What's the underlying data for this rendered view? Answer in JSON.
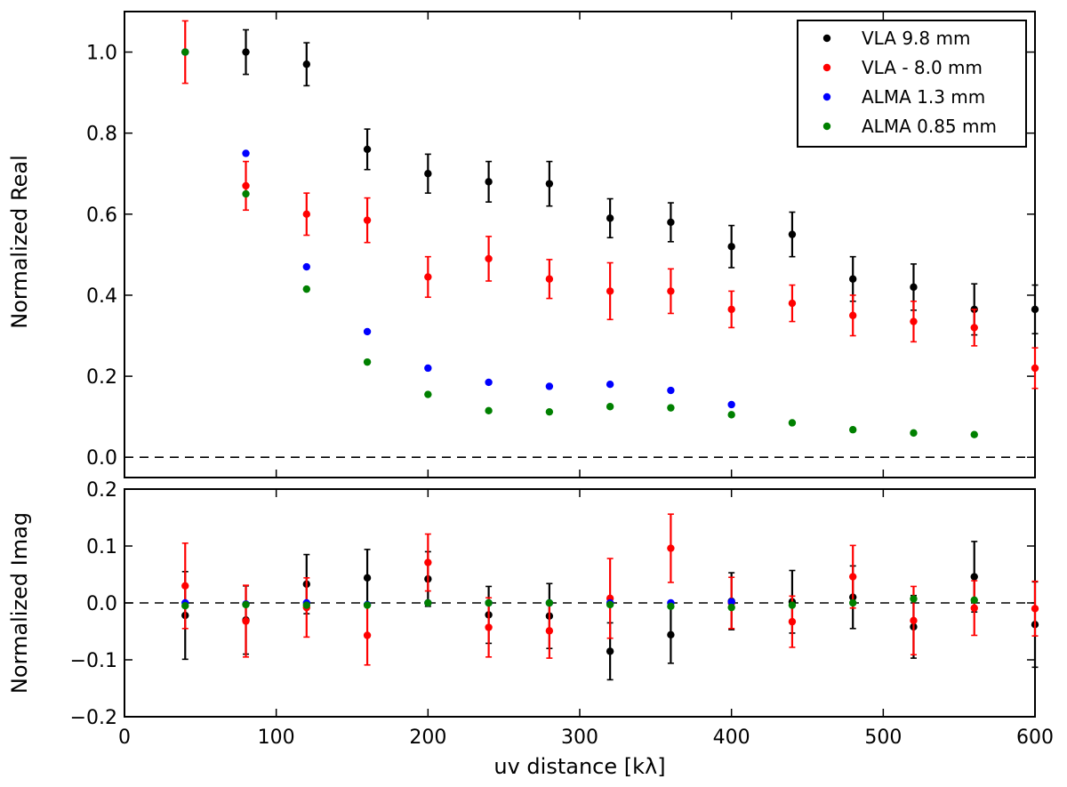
{
  "chart_data": [
    {
      "type": "scatter",
      "panel": "top",
      "ylabel": "Normalized Real",
      "xlim": [
        0,
        600
      ],
      "ylim": [
        -0.05,
        1.1
      ],
      "yticks": [
        0.0,
        0.2,
        0.4,
        0.6,
        0.8,
        1.0
      ],
      "ytick_labels": [
        "0.0",
        "0.2",
        "0.4",
        "0.6",
        "0.8",
        "1.0"
      ],
      "reference_line_y": 0.0,
      "legend": {
        "placement": "top-right",
        "entries": [
          "VLA 9.8 mm",
          "VLA - 8.0 mm",
          "ALMA 1.3 mm",
          "ALMA 0.85 mm"
        ]
      },
      "series": [
        {
          "name": "VLA 9.8 mm",
          "color": "#000000",
          "x": [
            80,
            120,
            160,
            200,
            240,
            280,
            320,
            360,
            400,
            440,
            480,
            520,
            560,
            600
          ],
          "y": [
            1.0,
            0.97,
            0.76,
            0.7,
            0.68,
            0.675,
            0.59,
            0.58,
            0.52,
            0.55,
            0.44,
            0.42,
            0.365,
            0.365
          ],
          "err": [
            0.055,
            0.053,
            0.05,
            0.048,
            0.05,
            0.055,
            0.048,
            0.048,
            0.052,
            0.055,
            0.055,
            0.057,
            0.063,
            0.06
          ]
        },
        {
          "name": "VLA - 8.0 mm",
          "color": "#ff0000",
          "x": [
            40,
            80,
            120,
            160,
            200,
            240,
            280,
            320,
            360,
            400,
            440,
            480,
            520,
            560,
            600
          ],
          "y": [
            1.0,
            0.67,
            0.6,
            0.585,
            0.445,
            0.49,
            0.44,
            0.41,
            0.41,
            0.365,
            0.38,
            0.35,
            0.335,
            0.32,
            0.22
          ],
          "err": [
            0.077,
            0.06,
            0.052,
            0.055,
            0.05,
            0.055,
            0.048,
            0.07,
            0.055,
            0.045,
            0.045,
            0.05,
            0.05,
            0.045,
            0.05
          ]
        },
        {
          "name": "ALMA 1.3 mm",
          "color": "#0000ff",
          "x": [
            40,
            80,
            120,
            160,
            200,
            240,
            280,
            320,
            360,
            400
          ],
          "y": [
            1.0,
            0.75,
            0.47,
            0.31,
            0.22,
            0.185,
            0.175,
            0.18,
            0.165,
            0.13
          ],
          "err": [
            0,
            0,
            0,
            0,
            0,
            0,
            0,
            0,
            0,
            0
          ]
        },
        {
          "name": "ALMA 0.85 mm",
          "color": "#008000",
          "x": [
            40,
            80,
            120,
            160,
            200,
            240,
            280,
            320,
            360,
            400,
            440,
            480,
            520,
            560
          ],
          "y": [
            1.0,
            0.65,
            0.415,
            0.235,
            0.155,
            0.115,
            0.112,
            0.125,
            0.122,
            0.105,
            0.085,
            0.068,
            0.06,
            0.056
          ],
          "err": [
            0,
            0,
            0,
            0,
            0,
            0,
            0,
            0,
            0,
            0,
            0,
            0,
            0,
            0
          ]
        }
      ]
    },
    {
      "type": "scatter",
      "panel": "bottom",
      "ylabel": "Normalized Imag",
      "xlabel": "uv distance [kλ]",
      "xlim": [
        0,
        600
      ],
      "ylim": [
        -0.2,
        0.2
      ],
      "xticks": [
        0,
        100,
        200,
        300,
        400,
        500,
        600
      ],
      "xtick_labels": [
        "0",
        "100",
        "200",
        "300",
        "400",
        "500",
        "600"
      ],
      "yticks": [
        -0.2,
        -0.1,
        0.0,
        0.1,
        0.2
      ],
      "ytick_labels": [
        "−0.2",
        "−0.1",
        "0.0",
        "0.1",
        "0.2"
      ],
      "reference_line_y": 0.0,
      "series": [
        {
          "name": "VLA 9.8 mm",
          "color": "#000000",
          "x": [
            40,
            80,
            120,
            160,
            200,
            240,
            280,
            320,
            360,
            400,
            440,
            480,
            520,
            560,
            600
          ],
          "y": [
            -0.022,
            -0.03,
            0.033,
            0.044,
            0.042,
            -0.021,
            -0.023,
            -0.085,
            -0.056,
            0.003,
            0.002,
            0.01,
            -0.042,
            0.046,
            -0.038
          ],
          "err": [
            0.077,
            0.06,
            0.052,
            0.05,
            0.048,
            0.05,
            0.057,
            0.05,
            0.05,
            0.05,
            0.055,
            0.055,
            0.055,
            0.062,
            0.075
          ]
        },
        {
          "name": "VLA - 8.0 mm",
          "color": "#ff0000",
          "x": [
            40,
            80,
            120,
            160,
            200,
            240,
            280,
            320,
            360,
            400,
            440,
            480,
            520,
            560,
            600
          ],
          "y": [
            0.03,
            -0.032,
            -0.008,
            -0.057,
            0.071,
            -0.043,
            -0.049,
            0.008,
            0.096,
            0.0,
            -0.033,
            0.046,
            -0.031,
            -0.009,
            -0.01
          ],
          "err": [
            0.075,
            0.063,
            0.052,
            0.052,
            0.05,
            0.052,
            0.048,
            0.07,
            0.06,
            0.045,
            0.045,
            0.055,
            0.06,
            0.048,
            0.048
          ]
        },
        {
          "name": "ALMA 1.3 mm",
          "color": "#0000ff",
          "x": [
            40,
            80,
            120,
            160,
            200,
            240,
            280,
            320,
            360,
            400
          ],
          "y": [
            0.0,
            -0.002,
            0.0,
            -0.003,
            0.0,
            0.0,
            0.0,
            0.0,
            0.0,
            0.002
          ],
          "err": [
            0,
            0,
            0,
            0,
            0,
            0,
            0,
            0,
            0,
            0
          ]
        },
        {
          "name": "ALMA 0.85 mm",
          "color": "#008000",
          "x": [
            40,
            80,
            120,
            160,
            200,
            240,
            280,
            320,
            360,
            400,
            440,
            480,
            520,
            560
          ],
          "y": [
            -0.005,
            -0.003,
            -0.004,
            -0.004,
            0.0,
            0.0,
            0.0,
            -0.003,
            -0.006,
            -0.008,
            -0.004,
            0.0,
            0.007,
            0.005
          ],
          "err": [
            0,
            0,
            0,
            0,
            0,
            0,
            0,
            0,
            0,
            0,
            0,
            0,
            0,
            0
          ]
        }
      ]
    }
  ]
}
